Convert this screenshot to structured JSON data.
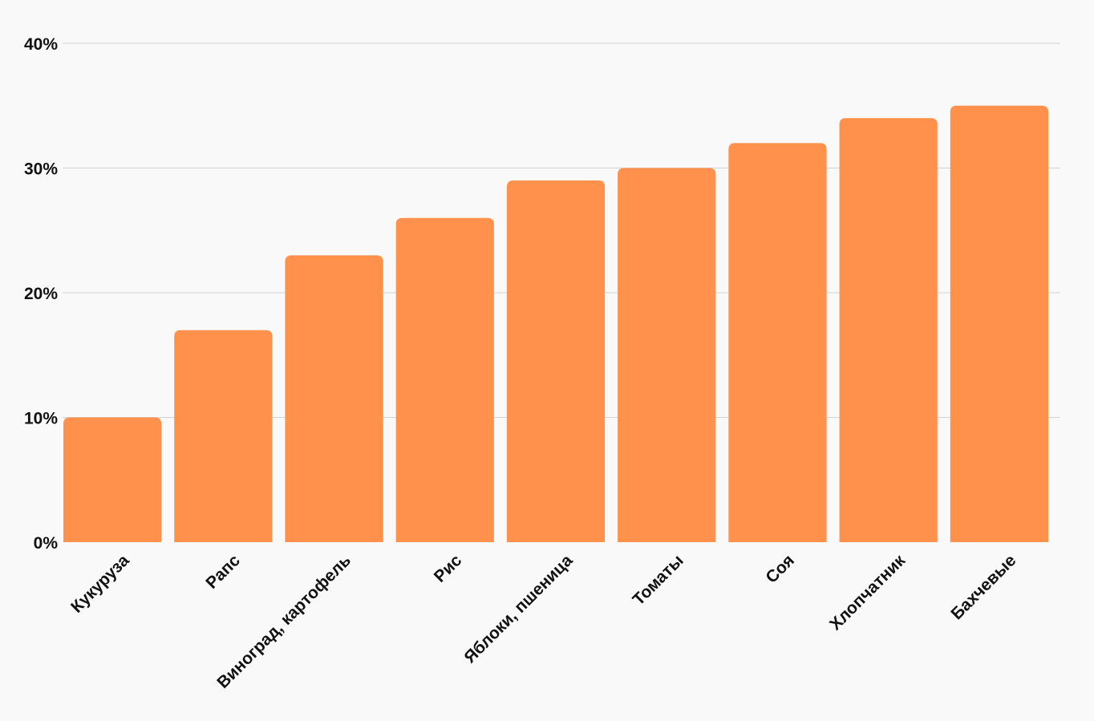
{
  "chart_data": {
    "type": "bar",
    "categories": [
      "Кукуруза",
      "Рапс",
      "Виноград, картофель",
      "Рис",
      "Яблоки, пшеница",
      "Томаты",
      "Соя",
      "Хлопчатник",
      "Бахчевые"
    ],
    "values": [
      10,
      17,
      23,
      26,
      29,
      30,
      32,
      34,
      35
    ],
    "value_unit": "%",
    "ylim": [
      0,
      40
    ],
    "yticks": [
      0,
      10,
      20,
      30,
      40
    ],
    "ytick_labels": [
      "0%",
      "10%",
      "20%",
      "30%",
      "40%"
    ],
    "grid": true,
    "bar_color": "#ff914d",
    "title": "",
    "xlabel": "",
    "ylabel": ""
  }
}
